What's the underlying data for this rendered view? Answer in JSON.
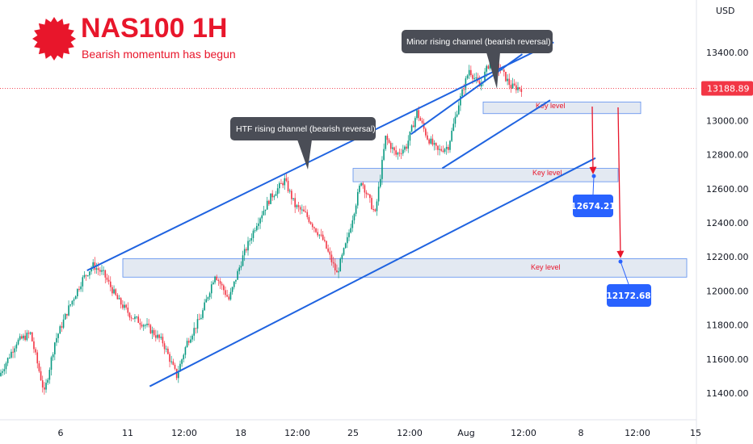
{
  "header": {
    "title": "NAS100 1H",
    "subtitle": "Bearish momentum has begun"
  },
  "chart_data": {
    "type": "candlestick",
    "symbol": "NAS100",
    "timeframe": "1H",
    "currency_label": "USD",
    "last_price": 13188.89,
    "ylim": [
      11350,
      13560
    ],
    "y_ticks": [
      11400,
      11600,
      11800,
      12000,
      12200,
      12400,
      12600,
      12800,
      13000,
      13200,
      13400
    ],
    "x_tick_labels": [
      "6",
      "11",
      "12:00",
      "18",
      "12:00",
      "25",
      "12:00",
      "Aug",
      "12:00",
      "8",
      "12:00",
      "15"
    ],
    "path_anchors": [
      [
        0.0,
        11500
      ],
      [
        0.025,
        11700
      ],
      [
        0.045,
        11750
      ],
      [
        0.065,
        11400
      ],
      [
        0.08,
        11700
      ],
      [
        0.1,
        11900
      ],
      [
        0.12,
        12070
      ],
      [
        0.135,
        12150
      ],
      [
        0.15,
        12100
      ],
      [
        0.17,
        11950
      ],
      [
        0.19,
        11850
      ],
      [
        0.21,
        11800
      ],
      [
        0.235,
        11700
      ],
      [
        0.255,
        11500
      ],
      [
        0.27,
        11700
      ],
      [
        0.29,
        11850
      ],
      [
        0.31,
        12100
      ],
      [
        0.33,
        11950
      ],
      [
        0.35,
        12200
      ],
      [
        0.37,
        12400
      ],
      [
        0.39,
        12550
      ],
      [
        0.41,
        12650
      ],
      [
        0.425,
        12500
      ],
      [
        0.44,
        12450
      ],
      [
        0.465,
        12300
      ],
      [
        0.485,
        12100
      ],
      [
        0.5,
        12300
      ],
      [
        0.52,
        12650
      ],
      [
        0.54,
        12450
      ],
      [
        0.555,
        12900
      ],
      [
        0.57,
        12800
      ],
      [
        0.585,
        12850
      ],
      [
        0.6,
        13050
      ],
      [
        0.615,
        12900
      ],
      [
        0.63,
        12820
      ],
      [
        0.645,
        12850
      ],
      [
        0.66,
        13100
      ],
      [
        0.675,
        13300
      ],
      [
        0.69,
        13200
      ],
      [
        0.705,
        13350
      ],
      [
        0.72,
        13300
      ],
      [
        0.735,
        13200
      ],
      [
        0.75,
        13190
      ]
    ],
    "key_levels": [
      {
        "label": "Key level",
        "low": 13060,
        "high": 13100
      },
      {
        "label": "Key level",
        "low": 12660,
        "high": 12710
      },
      {
        "label": "Key level",
        "low": 12100,
        "high": 12180
      }
    ],
    "trendlines": [
      {
        "name": "HTF rising channel upper",
        "from": [
          0.125,
          12120
        ],
        "to": [
          0.795,
          13460
        ]
      },
      {
        "name": "HTF rising channel lower",
        "from": [
          0.215,
          11440
        ],
        "to": [
          0.855,
          12780
        ]
      },
      {
        "name": "Minor rising channel upper",
        "from": [
          0.59,
          12920
        ],
        "to": [
          0.75,
          13390
        ]
      },
      {
        "name": "Minor rising channel lower",
        "from": [
          0.635,
          12720
        ],
        "to": [
          0.79,
          13120
        ]
      }
    ],
    "callouts": [
      {
        "text": "Minor rising channel (bearish reversal)"
      },
      {
        "text": "HTF rising channel (bearish reversal)"
      }
    ],
    "targets": [
      {
        "label": "12674.21",
        "value": 12674.21
      },
      {
        "label": "12172.68",
        "value": 12172.68
      }
    ],
    "colors": {
      "up": "#089981",
      "down": "#f23645",
      "trendline": "#1f63e0",
      "key_level_fill": "#e3e9f2",
      "key_level_text": "#e8162b",
      "arrow": "#e8162b",
      "target_bg": "#2962ff",
      "callout_bg": "#4a4d56",
      "last_price_bg": "#f23645",
      "title": "#e8162b"
    }
  }
}
